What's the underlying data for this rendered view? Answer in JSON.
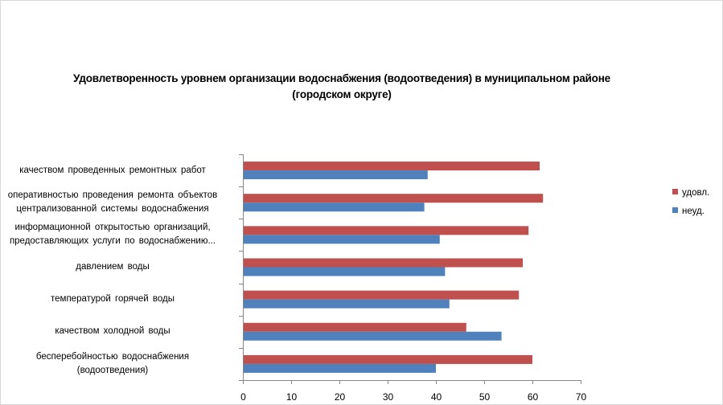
{
  "chart_data": {
    "type": "bar",
    "orientation": "horizontal",
    "title_lines": [
      "Удовлетворенность уровнем организации водоснабжения (водоотведения) в муниципальном районе",
      "(городском округе)"
    ],
    "categories": [
      {
        "lines": [
          "качеством  проведенных  ремонтных работ"
        ]
      },
      {
        "lines": [
          "оперативностью  проведения  ремонта объектов",
          "централизованной системы водоснабжения"
        ]
      },
      {
        "lines": [
          "информационной открытостью организаций,",
          "предоставляющих услуги по водоснабжению..."
        ]
      },
      {
        "lines": [
          "давлением  воды"
        ]
      },
      {
        "lines": [
          "температурой горячей воды"
        ]
      },
      {
        "lines": [
          "качеством холодной воды"
        ]
      },
      {
        "lines": [
          "бесперебойностью  водоснабжения",
          "(водоотведения)"
        ]
      }
    ],
    "series": [
      {
        "name": "удовл.",
        "color": "#c0504d",
        "values": [
          61.5,
          62.2,
          59.2,
          58.0,
          57.2,
          46.3,
          60.0
        ]
      },
      {
        "name": "неуд.",
        "color": "#4f81bd",
        "values": [
          38.3,
          37.6,
          40.8,
          41.9,
          42.8,
          53.6,
          40.0
        ]
      }
    ],
    "xlim": [
      0,
      70
    ],
    "xticks": [
      "0",
      "10",
      "20",
      "30",
      "40",
      "50",
      "60",
      "70"
    ],
    "legend_position": "right",
    "grid": false
  }
}
